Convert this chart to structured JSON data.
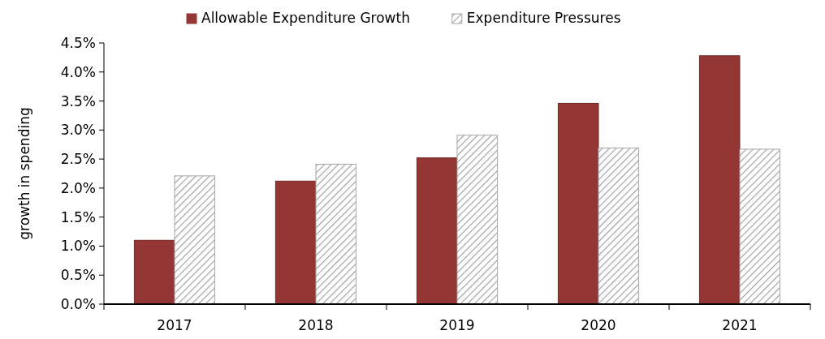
{
  "chart_data": {
    "type": "bar",
    "ylabel": "growth in spending",
    "categories": [
      "2017",
      "2018",
      "2019",
      "2020",
      "2021"
    ],
    "series": [
      {
        "name": "Allowable Expenditure Growth",
        "color": "#943634",
        "values": [
          1.1,
          2.12,
          2.52,
          3.46,
          4.28
        ]
      },
      {
        "name": "Expenditure Pressures",
        "color": "#a6a6a6",
        "values": [
          2.21,
          2.41,
          2.91,
          2.69,
          2.67
        ]
      }
    ],
    "ylim": [
      0,
      4.5
    ],
    "yticks": [
      {
        "value": 0,
        "label": "0.0%"
      },
      {
        "value": 0.5,
        "label": "0.5%"
      },
      {
        "value": 1,
        "label": "1.0%"
      },
      {
        "value": 1.5,
        "label": "1.5%"
      },
      {
        "value": 2,
        "label": "2.0%"
      },
      {
        "value": 2.5,
        "label": "2.5%"
      },
      {
        "value": 3,
        "label": "3.0%"
      },
      {
        "value": 3.5,
        "label": "3.5%"
      },
      {
        "value": 4,
        "label": "4.0%"
      },
      {
        "value": 4.5,
        "label": "4.5%"
      }
    ],
    "legend": "top",
    "grid": false
  }
}
